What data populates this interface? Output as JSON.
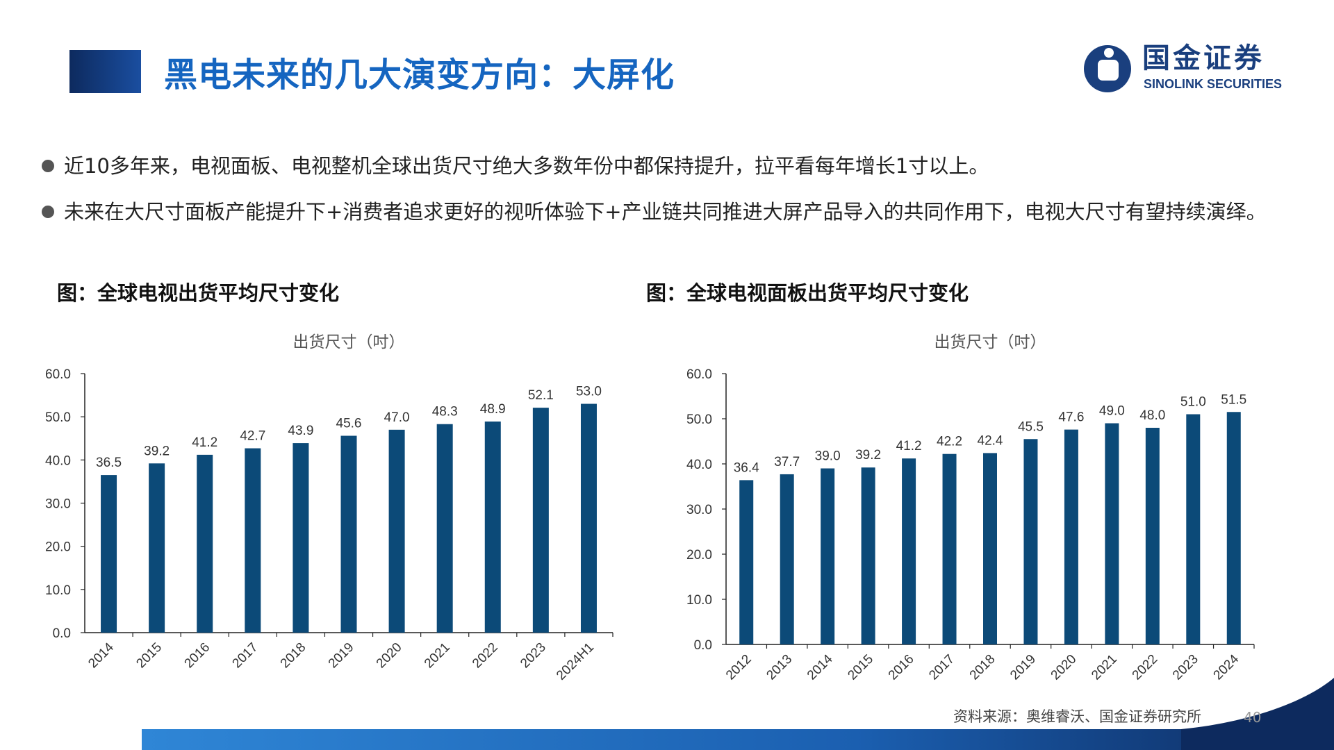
{
  "header": {
    "title": "黑电未来的几大演变方向：大屏化"
  },
  "logo": {
    "cn": "国金证券",
    "en": "SINOLINK SECURITIES"
  },
  "bullets": [
    "近10多年来，电视面板、电视整机全球出货尺寸绝大多数年份中都保持提升，拉平看每年增长1寸以上。",
    "未来在大尺寸面板产能提升下+消费者追求更好的视听体验下+产业链共同推进大屏产品导入的共同作用下，电视大尺寸有望持续演绎。"
  ],
  "chart_data": [
    {
      "type": "bar",
      "caption": "图：全球电视出货平均尺寸变化",
      "title": "出货尺寸（吋）",
      "categories": [
        "2014",
        "2015",
        "2016",
        "2017",
        "2018",
        "2019",
        "2020",
        "2021",
        "2022",
        "2023",
        "2024H1"
      ],
      "values": [
        36.5,
        39.2,
        41.2,
        42.7,
        43.9,
        45.6,
        47.0,
        48.3,
        48.9,
        52.1,
        53.0
      ],
      "value_labels": [
        "36.5",
        "39.2",
        "41.2",
        "42.7",
        "43.9",
        "45.6",
        "47.0",
        "48.3",
        "48.9",
        "52.1",
        "53.0"
      ],
      "ylim": [
        0,
        60
      ],
      "yticks": [
        "0.0",
        "10.0",
        "20.0",
        "30.0",
        "40.0",
        "50.0",
        "60.0"
      ],
      "bar_color": "#0c4a78",
      "grid": false,
      "legend": "none"
    },
    {
      "type": "bar",
      "caption": "图：全球电视面板出货平均尺寸变化",
      "title": "出货尺寸（吋）",
      "categories": [
        "2012",
        "2013",
        "2014",
        "2015",
        "2016",
        "2017",
        "2018",
        "2019",
        "2020",
        "2021",
        "2022",
        "2023",
        "2024"
      ],
      "values": [
        36.4,
        37.7,
        39.0,
        39.2,
        41.2,
        42.2,
        42.4,
        45.5,
        47.6,
        49.0,
        48.0,
        51.0,
        51.5
      ],
      "value_labels": [
        "36.4",
        "37.7",
        "39.0",
        "39.2",
        "41.2",
        "42.2",
        "42.4",
        "45.5",
        "47.6",
        "49.0",
        "48.0",
        "51.0",
        "51.5"
      ],
      "ylim": [
        0,
        60
      ],
      "yticks": [
        "0.0",
        "10.0",
        "20.0",
        "30.0",
        "40.0",
        "50.0",
        "60.0"
      ],
      "bar_color": "#0c4a78",
      "grid": false,
      "legend": "none"
    }
  ],
  "footer": {
    "source": "资料来源：奥维睿沃、国金证券研究所",
    "page_number": "40"
  },
  "colors": {
    "title_blue": "#1565c0",
    "brand_navy": "#1a3f7e",
    "bar": "#0c4a78"
  }
}
